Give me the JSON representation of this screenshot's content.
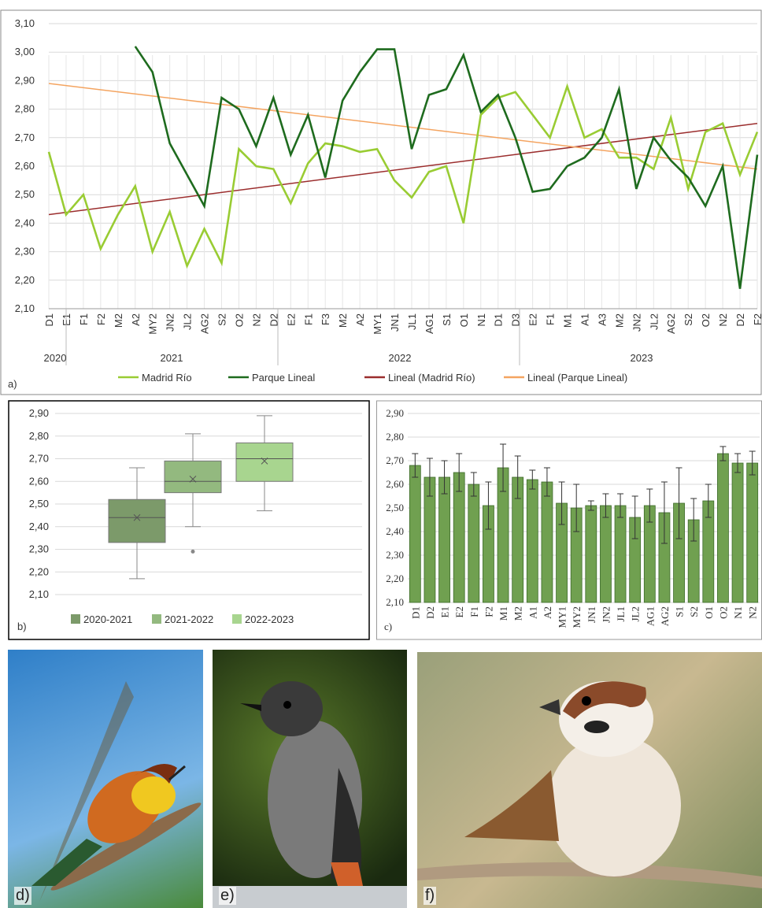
{
  "chart_data": [
    {
      "type": "line",
      "panel_label": "a)",
      "categories": [
        "D1",
        "E1",
        "F1",
        "F2",
        "M2",
        "A2",
        "MY2",
        "JN2",
        "JL2",
        "AG2",
        "S2",
        "O2",
        "N2",
        "D2",
        "E2",
        "F1",
        "F3",
        "M2",
        "A2",
        "MY1",
        "JN1",
        "JL1",
        "AG1",
        "S1",
        "O1",
        "N1",
        "D1",
        "D3",
        "E2",
        "F1",
        "M1",
        "A1",
        "A3",
        "M2",
        "JN2",
        "JL2",
        "AG2",
        "S2",
        "O2",
        "N2",
        "D2",
        "F2"
      ],
      "years": [
        "2020",
        "2021",
        "2022",
        "2023"
      ],
      "series": [
        {
          "name": "Madrid Río",
          "color": "#99cc33",
          "values": [
            2.65,
            2.43,
            2.5,
            2.31,
            2.43,
            2.53,
            2.3,
            2.44,
            2.25,
            2.38,
            2.26,
            2.66,
            2.6,
            2.59,
            2.47,
            2.61,
            2.68,
            2.67,
            2.65,
            2.66,
            2.55,
            2.49,
            2.58,
            2.6,
            2.4,
            2.78,
            2.84,
            2.86,
            2.78,
            2.7,
            2.88,
            2.7,
            2.73,
            2.63,
            2.63,
            2.59,
            2.77,
            2.52,
            2.72,
            2.75,
            2.57,
            2.72
          ]
        },
        {
          "name": "Parque Lineal",
          "color": "#1e6b1e",
          "values": [
            null,
            null,
            null,
            null,
            null,
            3.02,
            2.93,
            2.68,
            2.57,
            2.46,
            2.84,
            2.8,
            2.67,
            2.84,
            2.64,
            2.78,
            2.56,
            2.83,
            2.93,
            3.01,
            3.01,
            2.66,
            2.85,
            2.87,
            2.99,
            2.79,
            2.85,
            2.7,
            2.51,
            2.52,
            2.6,
            2.63,
            2.7,
            2.87,
            2.52,
            2.7,
            2.62,
            2.56,
            2.46,
            2.6,
            2.17,
            2.64
          ]
        }
      ],
      "trendlines": [
        {
          "name": "Lineal (Madrid Río)",
          "color": "#9b2d2d",
          "values": [
            2.43,
            2.75
          ]
        },
        {
          "name": "Lineal (Parque Lineal)",
          "color": "#f4a460",
          "values": [
            2.89,
            2.59
          ]
        }
      ],
      "ylim": [
        2.1,
        3.1
      ],
      "yticks": [
        {
          "value": 2.1,
          "label": "2,10"
        },
        {
          "value": 2.2,
          "label": "2,20"
        },
        {
          "value": 2.3,
          "label": "2,30"
        },
        {
          "value": 2.4,
          "label": "2,40"
        },
        {
          "value": 2.5,
          "label": "2,50"
        },
        {
          "value": 2.6,
          "label": "2,60"
        },
        {
          "value": 2.7,
          "label": "2,70"
        },
        {
          "value": 2.8,
          "label": "2,80"
        },
        {
          "value": 2.9,
          "label": "2,90"
        },
        {
          "value": 3.0,
          "label": "3,00"
        },
        {
          "value": 3.1,
          "label": "3,10"
        }
      ],
      "grid": true
    },
    {
      "type": "box",
      "panel_label": "b)",
      "series": [
        {
          "name": "2020-2021",
          "color": "#7c9a6a",
          "min": 2.17,
          "q1": 2.33,
          "median": 2.44,
          "mean": 2.44,
          "q3": 2.52,
          "max": 2.66,
          "outliers": []
        },
        {
          "name": "2021-2022",
          "color": "#93b97f",
          "min": 2.4,
          "q1": 2.55,
          "median": 2.6,
          "mean": 2.61,
          "q3": 2.69,
          "max": 2.81,
          "outliers": [
            2.29
          ]
        },
        {
          "name": "2022-2023",
          "color": "#a8d58f",
          "min": 2.47,
          "q1": 2.6,
          "median": 2.7,
          "mean": 2.69,
          "q3": 2.77,
          "max": 2.89,
          "outliers": []
        }
      ],
      "ylim": [
        2.1,
        2.9
      ],
      "yticks": [
        {
          "value": 2.1,
          "label": "2,10"
        },
        {
          "value": 2.2,
          "label": "2,20"
        },
        {
          "value": 2.3,
          "label": "2,30"
        },
        {
          "value": 2.4,
          "label": "2,40"
        },
        {
          "value": 2.5,
          "label": "2,50"
        },
        {
          "value": 2.6,
          "label": "2,60"
        },
        {
          "value": 2.7,
          "label": "2,70"
        },
        {
          "value": 2.8,
          "label": "2,80"
        },
        {
          "value": 2.9,
          "label": "2,90"
        }
      ],
      "grid": true
    },
    {
      "type": "bar",
      "panel_label": "c)",
      "categories": [
        "D1",
        "D2",
        "E1",
        "E2",
        "F1",
        "F2",
        "M1",
        "M2",
        "A1",
        "A2",
        "MY1",
        "MY2",
        "JN1",
        "JN2",
        "JL1",
        "JL2",
        "AG1",
        "AG2",
        "S1",
        "S2",
        "O1",
        "O2",
        "N1",
        "N2"
      ],
      "values": [
        2.68,
        2.63,
        2.63,
        2.65,
        2.6,
        2.51,
        2.67,
        2.63,
        2.62,
        2.61,
        2.52,
        2.5,
        2.51,
        2.51,
        2.51,
        2.46,
        2.51,
        2.48,
        2.52,
        2.45,
        2.53,
        2.73,
        2.69,
        2.69
      ],
      "errors": [
        0.05,
        0.08,
        0.07,
        0.08,
        0.05,
        0.1,
        0.1,
        0.09,
        0.04,
        0.06,
        0.09,
        0.1,
        0.02,
        0.05,
        0.05,
        0.09,
        0.07,
        0.13,
        0.15,
        0.09,
        0.07,
        0.03,
        0.04,
        0.05
      ],
      "color": "#70a050",
      "ylim": [
        2.1,
        2.9
      ],
      "yticks": [
        {
          "value": 2.1,
          "label": "2,10"
        },
        {
          "value": 2.2,
          "label": "2,20"
        },
        {
          "value": 2.3,
          "label": "2,30"
        },
        {
          "value": 2.4,
          "label": "2,40"
        },
        {
          "value": 2.5,
          "label": "2,50"
        },
        {
          "value": 2.6,
          "label": "2,60"
        },
        {
          "value": 2.7,
          "label": "2,70"
        },
        {
          "value": 2.8,
          "label": "2,80"
        },
        {
          "value": 2.9,
          "label": "2,90"
        }
      ],
      "grid": true
    }
  ],
  "photos": [
    {
      "label": "d)"
    },
    {
      "label": "e)"
    },
    {
      "label": "f)"
    }
  ]
}
